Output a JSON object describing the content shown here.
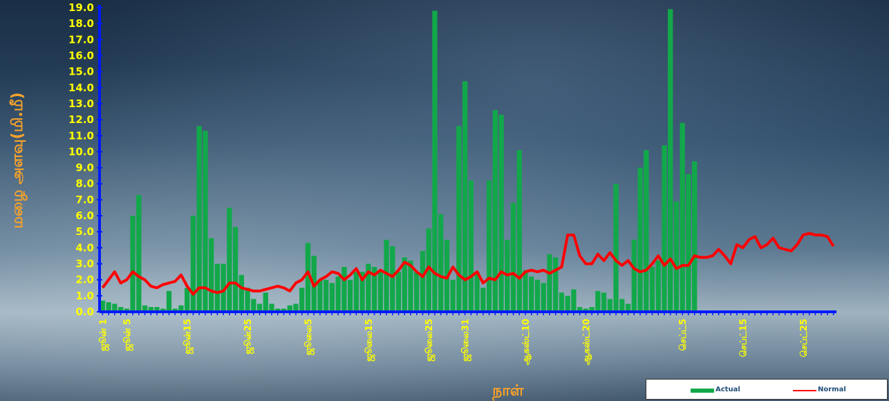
{
  "chart_data": {
    "type": "bar",
    "title": "",
    "xlabel": "நாள்",
    "ylabel": "மழை அளவு(மி.மீ)",
    "ylim": [
      0,
      19
    ],
    "y_ticks": [
      "0.0",
      "1.0",
      "2.0",
      "3.0",
      "4.0",
      "5.0",
      "6.0",
      "7.0",
      "8.0",
      "9.0",
      "10.0",
      "11.0",
      "12.0",
      "13.0",
      "14.0",
      "15.0",
      "16.0",
      "17.0",
      "18.0",
      "19.0"
    ],
    "x_tick_labels": [
      {
        "day": 1,
        "label": "ஜூன் 1"
      },
      {
        "day": 5,
        "label": "ஜூன் 5"
      },
      {
        "day": 15,
        "label": "ஜூன்15"
      },
      {
        "day": 25,
        "label": "ஜூன்25"
      },
      {
        "day": 35,
        "label": "ஜூலை5"
      },
      {
        "day": 45,
        "label": "ஜூலை15"
      },
      {
        "day": 55,
        "label": "ஜூலை25"
      },
      {
        "day": 61,
        "label": "ஜூலை31"
      },
      {
        "day": 71,
        "label": "ஆகஸ்ட்10"
      },
      {
        "day": 81,
        "label": "ஆகஸ்ட்20"
      },
      {
        "day": 97,
        "label": "செப்ட்5"
      },
      {
        "day": 107,
        "label": "செப்ட்15"
      },
      {
        "day": 117,
        "label": "செப்ட்25"
      }
    ],
    "total_days": 122,
    "grid": false,
    "legend_position": "bottom-right",
    "series": [
      {
        "name": "Actual",
        "color": "#12a84a",
        "values": [
          0.7,
          0.6,
          0.5,
          0.3,
          0.2,
          6.0,
          7.3,
          0.4,
          0.3,
          0.3,
          0.2,
          1.3,
          0.2,
          0.4,
          1.5,
          6.0,
          11.6,
          11.3,
          4.6,
          3.0,
          3.0,
          6.5,
          5.3,
          2.3,
          1.5,
          0.8,
          0.5,
          1.2,
          0.5,
          0.2,
          0.2,
          0.4,
          0.5,
          1.5,
          4.3,
          3.5,
          2.0,
          2.0,
          1.8,
          2.2,
          2.8,
          2.0,
          2.5,
          2.5,
          3.0,
          2.8,
          2.5,
          4.5,
          4.1,
          2.5,
          3.4,
          3.2,
          2.5,
          3.8,
          5.2,
          18.8,
          6.1,
          4.5,
          2.0,
          11.6,
          14.4,
          8.2,
          2.5,
          1.5,
          8.2,
          12.6,
          12.3,
          4.5,
          6.8,
          10.1,
          2.6,
          2.2,
          2.0,
          1.8,
          3.6,
          3.4,
          1.2,
          1.0,
          1.4,
          0.3,
          0.2,
          0.3,
          1.3,
          1.2,
          0.8,
          8.0,
          0.8,
          0.5,
          4.5,
          9.0,
          10.1,
          2.8,
          3.2,
          10.4,
          18.9,
          6.9,
          11.8,
          8.6,
          9.4,
          0,
          0,
          0,
          0,
          0,
          0,
          0,
          0,
          0,
          0,
          0,
          0,
          0,
          0,
          0,
          0,
          0,
          0,
          0,
          0,
          0,
          0,
          0
        ]
      },
      {
        "name": "Normal",
        "color": "#ff0000",
        "values": [
          1.5,
          2.0,
          2.5,
          1.8,
          2.0,
          2.5,
          2.2,
          2.0,
          1.6,
          1.5,
          1.7,
          1.8,
          1.9,
          2.3,
          1.6,
          1.1,
          1.5,
          1.5,
          1.3,
          1.2,
          1.3,
          1.8,
          1.8,
          1.5,
          1.4,
          1.3,
          1.3,
          1.4,
          1.5,
          1.6,
          1.5,
          1.3,
          1.8,
          2.0,
          2.5,
          1.6,
          2.0,
          2.2,
          2.5,
          2.4,
          2.0,
          2.3,
          2.7,
          2.0,
          2.5,
          2.3,
          2.6,
          2.4,
          2.2,
          2.6,
          3.1,
          2.9,
          2.5,
          2.2,
          2.8,
          2.4,
          2.2,
          2.1,
          2.8,
          2.3,
          2.0,
          2.2,
          2.5,
          1.8,
          2.1,
          2.0,
          2.5,
          2.3,
          2.4,
          2.1,
          2.5,
          2.6,
          2.5,
          2.6,
          2.4,
          2.6,
          2.8,
          4.8,
          4.8,
          3.5,
          3.0,
          3.0,
          3.6,
          3.2,
          3.7,
          3.2,
          2.9,
          3.2,
          2.7,
          2.5,
          2.6,
          3.0,
          3.5,
          2.9,
          3.3,
          2.7,
          2.9,
          2.9,
          3.5,
          3.4,
          3.4,
          3.5,
          3.9,
          3.5,
          3.0,
          4.2,
          4.0,
          4.5,
          4.7,
          4.0,
          4.2,
          4.6,
          4.0,
          3.9,
          3.8,
          4.2,
          4.8,
          4.9,
          4.8,
          4.8,
          4.7,
          4.1
        ]
      }
    ]
  }
}
